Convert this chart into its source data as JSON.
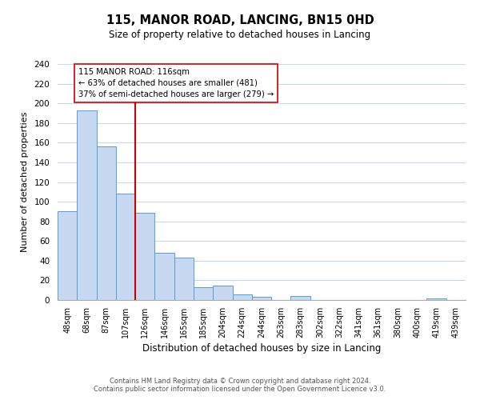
{
  "title": "115, MANOR ROAD, LANCING, BN15 0HD",
  "subtitle": "Size of property relative to detached houses in Lancing",
  "xlabel": "Distribution of detached houses by size in Lancing",
  "ylabel": "Number of detached properties",
  "bar_labels": [
    "48sqm",
    "68sqm",
    "87sqm",
    "107sqm",
    "126sqm",
    "146sqm",
    "165sqm",
    "185sqm",
    "204sqm",
    "224sqm",
    "244sqm",
    "263sqm",
    "283sqm",
    "302sqm",
    "322sqm",
    "341sqm",
    "361sqm",
    "380sqm",
    "400sqm",
    "419sqm",
    "439sqm"
  ],
  "bar_heights": [
    90,
    193,
    156,
    108,
    89,
    48,
    43,
    13,
    15,
    6,
    3,
    0,
    4,
    0,
    0,
    0,
    0,
    0,
    0,
    2,
    0
  ],
  "bar_color": "#c6d9f0",
  "bar_edge_color": "#5b9bd5",
  "vline_x": 3.5,
  "vline_color": "#cc0000",
  "annotation_box_text": "115 MANOR ROAD: 116sqm\n← 63% of detached houses are smaller (481)\n37% of semi-detached houses are larger (279) →",
  "annotation_box_edge_color": "#cc0000",
  "ylim": [
    0,
    240
  ],
  "yticks": [
    0,
    20,
    40,
    60,
    80,
    100,
    120,
    140,
    160,
    180,
    200,
    220,
    240
  ],
  "footer_line1": "Contains HM Land Registry data © Crown copyright and database right 2024.",
  "footer_line2": "Contains public sector information licensed under the Open Government Licence v3.0.",
  "bg_color": "#ffffff",
  "grid_color": "#c8d8e8"
}
